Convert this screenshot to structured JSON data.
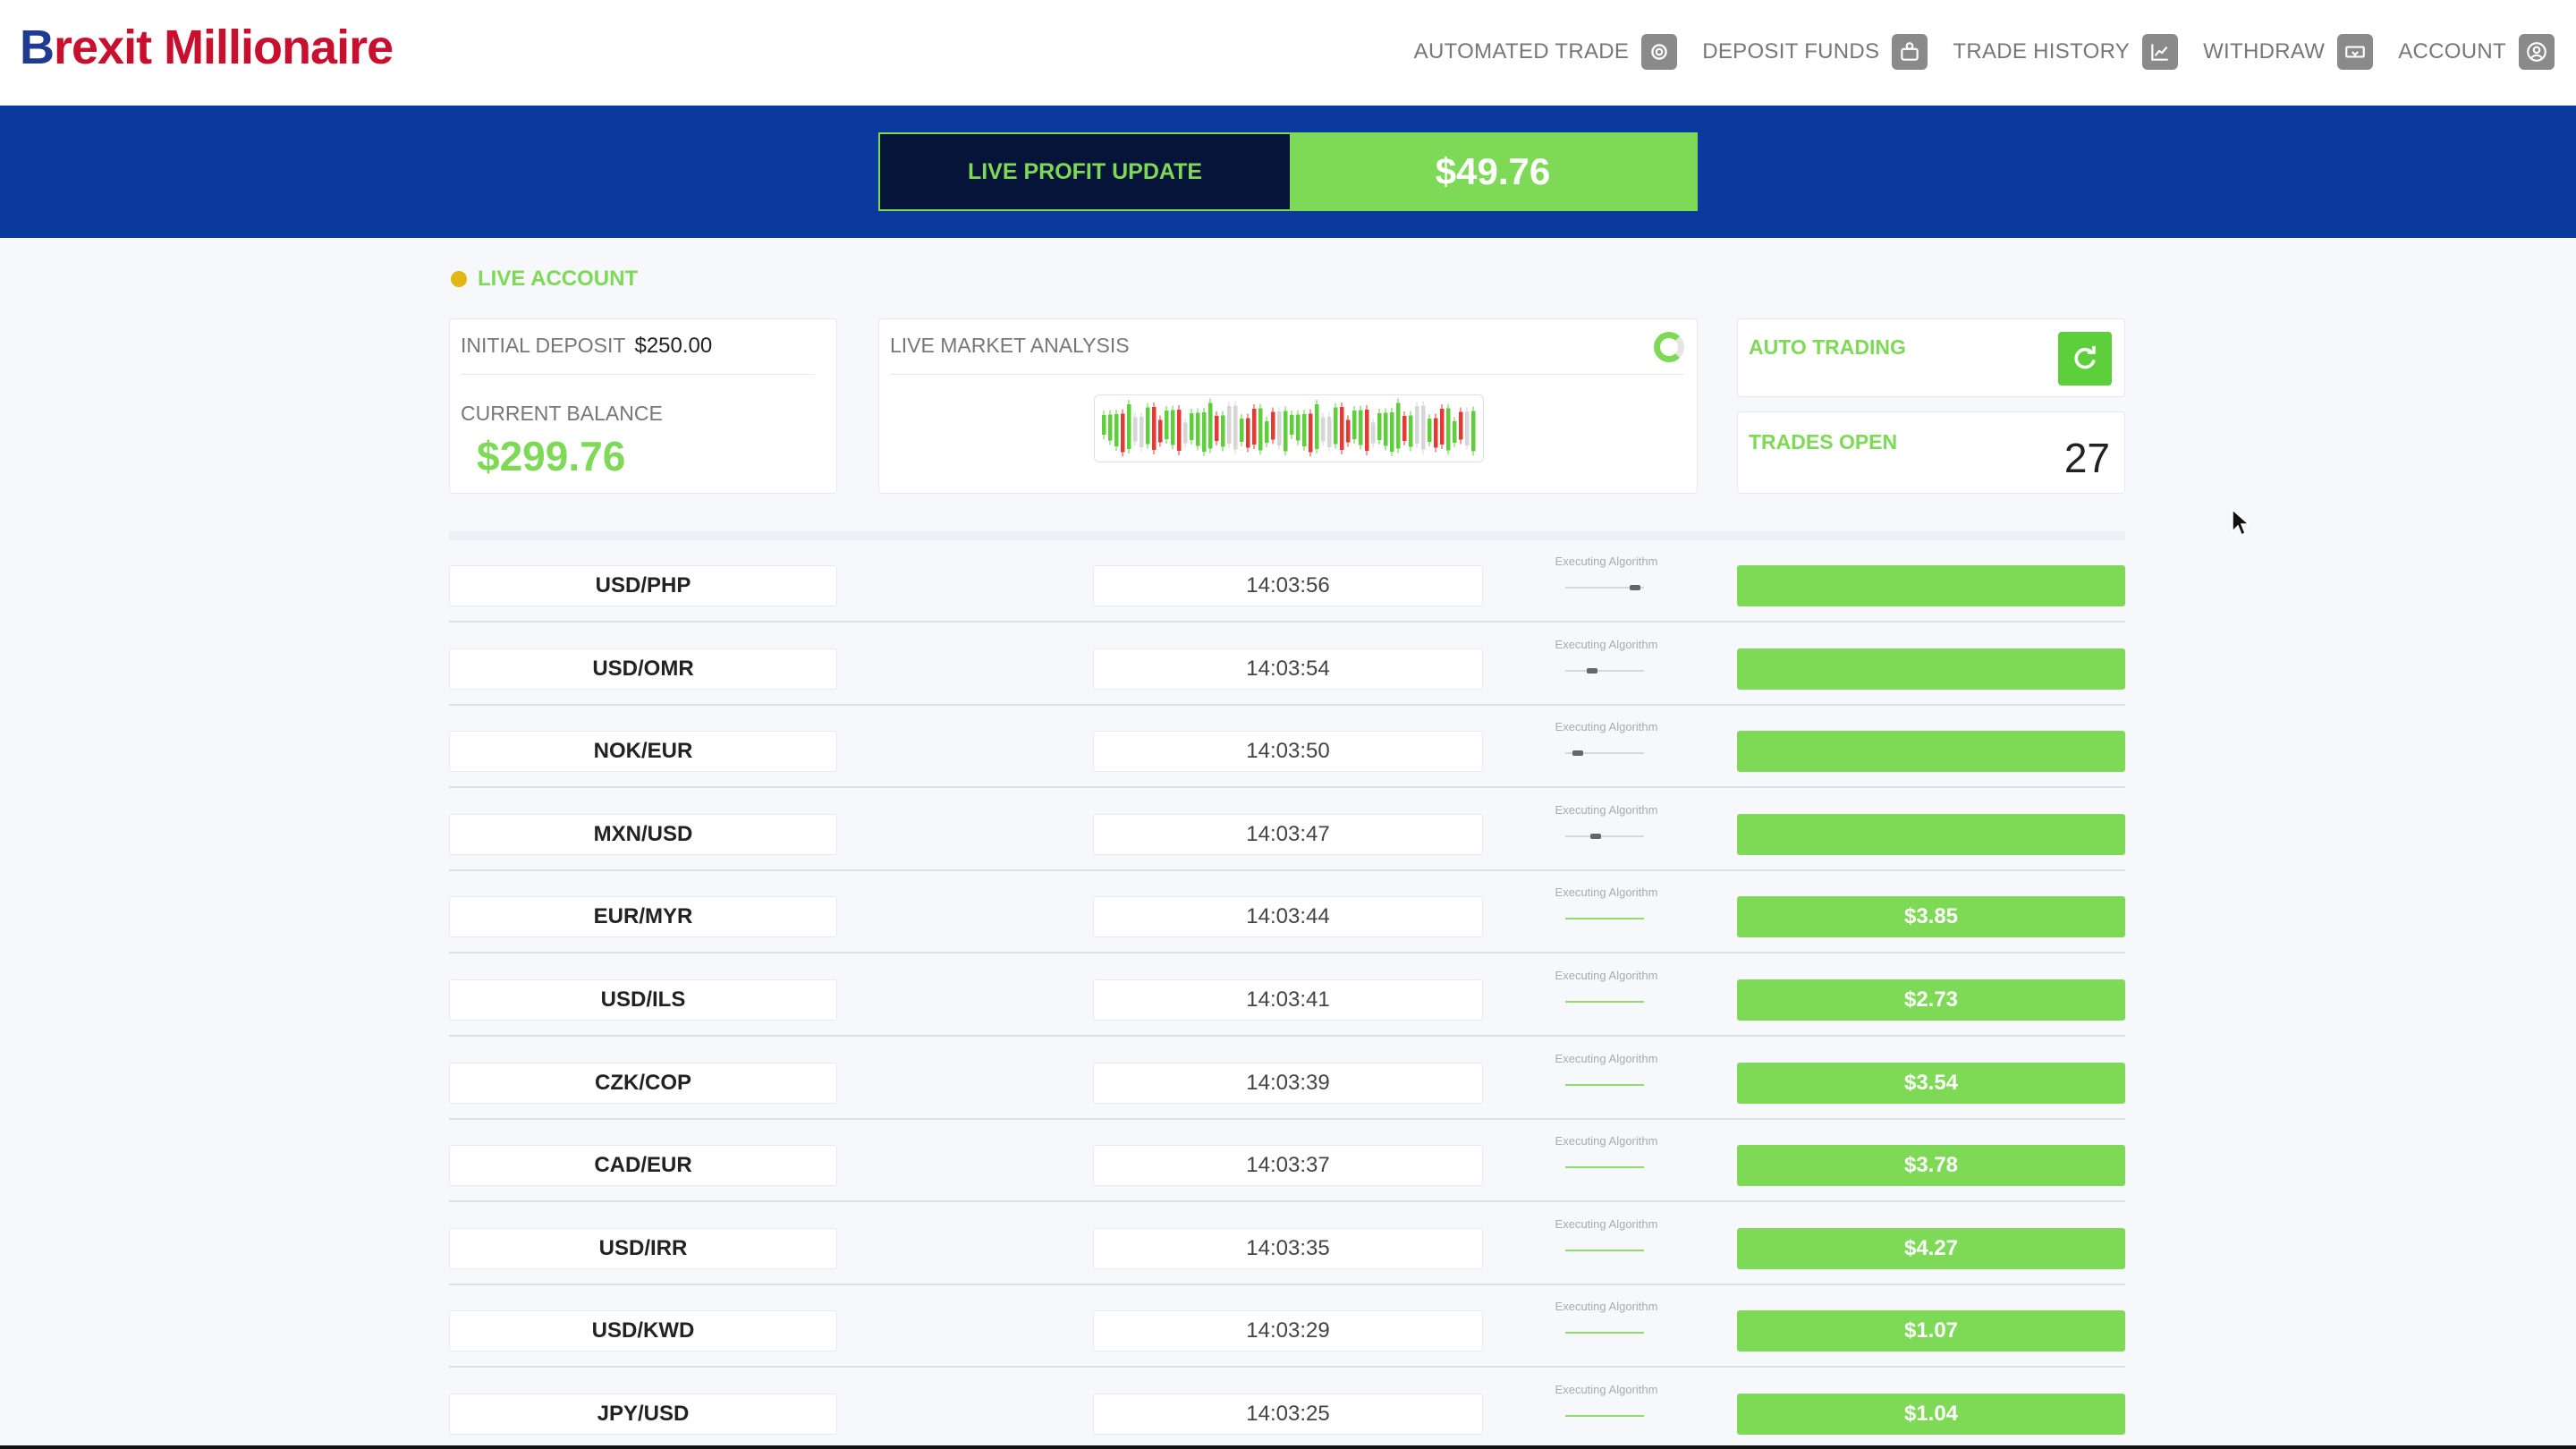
{
  "brand": {
    "logo_first": "B",
    "logo_rest": "rexit Millionaire"
  },
  "nav": [
    {
      "label": "AUTOMATED TRADE",
      "icon": "gear-icon"
    },
    {
      "label": "DEPOSIT FUNDS",
      "icon": "wallet-icon"
    },
    {
      "label": "TRADE HISTORY",
      "icon": "chart-icon"
    },
    {
      "label": "WITHDRAW",
      "icon": "money-icon"
    },
    {
      "label": "ACCOUNT",
      "icon": "user-icon"
    }
  ],
  "profit": {
    "label": "LIVE PROFIT UPDATE",
    "value": "$49.76"
  },
  "account": {
    "status": "LIVE ACCOUNT"
  },
  "deposit": {
    "initial_label": "INITIAL DEPOSIT",
    "initial_value": "$250.00",
    "balance_label": "CURRENT BALANCE",
    "balance_value": "$299.76"
  },
  "market": {
    "label": "LIVE MARKET ANALYSIS"
  },
  "auto": {
    "label": "AUTO TRADING"
  },
  "trades_open": {
    "label": "TRADES OPEN",
    "value": "27"
  },
  "algo_label": "Executing Algorithm",
  "trades": [
    {
      "pair": "USD/PHP",
      "time": "14:03:56",
      "result": "",
      "progress": 0.9
    },
    {
      "pair": "USD/OMR",
      "time": "14:03:54",
      "result": "",
      "progress": 0.3
    },
    {
      "pair": "NOK/EUR",
      "time": "14:03:50",
      "result": "",
      "progress": 0.1
    },
    {
      "pair": "MXN/USD",
      "time": "14:03:47",
      "result": "",
      "progress": 0.35
    },
    {
      "pair": "EUR/MYR",
      "time": "14:03:44",
      "result": "$3.85",
      "progress": 1
    },
    {
      "pair": "USD/ILS",
      "time": "14:03:41",
      "result": "$2.73",
      "progress": 1
    },
    {
      "pair": "CZK/COP",
      "time": "14:03:39",
      "result": "$3.54",
      "progress": 1
    },
    {
      "pair": "CAD/EUR",
      "time": "14:03:37",
      "result": "$3.78",
      "progress": 1
    },
    {
      "pair": "USD/IRR",
      "time": "14:03:35",
      "result": "$4.27",
      "progress": 1
    },
    {
      "pair": "USD/KWD",
      "time": "14:03:29",
      "result": "$1.07",
      "progress": 1
    },
    {
      "pair": "JPY/USD",
      "time": "14:03:25",
      "result": "$1.04",
      "progress": 1
    }
  ],
  "colors": {
    "brand_red": "#c8102e",
    "brand_blue": "#1f3b8f",
    "band_blue": "#0a3a9e",
    "accent_green": "#7ed957",
    "live_dot": "#e2b714"
  }
}
